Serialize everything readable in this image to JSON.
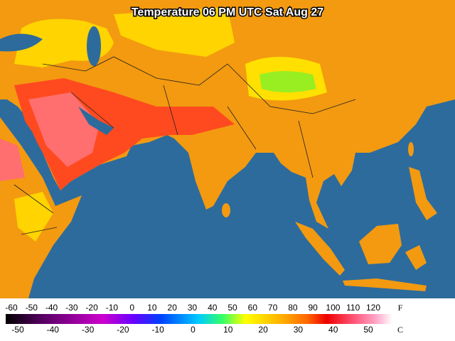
{
  "title": "Temperature 06 PM UTC Sat Aug 27",
  "legend": {
    "fahrenheit": {
      "unit": "F",
      "lim": [
        -60,
        120
      ],
      "ticks": [
        -60,
        -50,
        -40,
        -30,
        -20,
        -10,
        0,
        10,
        20,
        30,
        40,
        50,
        60,
        70,
        80,
        90,
        100,
        110,
        120
      ]
    },
    "celsius": {
      "unit": "C",
      "lim": [
        -50,
        50
      ],
      "ticks": [
        -50,
        -40,
        -30,
        -20,
        -10,
        0,
        10,
        20,
        30,
        40,
        50
      ]
    }
  }
}
